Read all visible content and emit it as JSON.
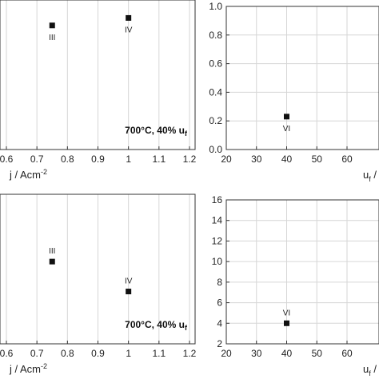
{
  "chart_data": [
    {
      "type": "scatter",
      "panel": "top-left",
      "xlim": [
        0.5,
        1.2
      ],
      "xticks": [
        "0.6",
        "0.7",
        "0.8",
        "0.9",
        "1",
        "1.1",
        "1.2"
      ],
      "xtick_values": [
        0.6,
        0.7,
        0.8,
        0.9,
        1.0,
        1.1,
        1.2
      ],
      "xlabel": "j / Acm",
      "xlabel_sup": "-2",
      "ylim": [
        0,
        1
      ],
      "grid": true,
      "annotation": "700°C, 40% u",
      "annotation_sub": "f",
      "points": [
        {
          "x": 0.75,
          "y": 0.83,
          "label": "III",
          "label_pos": "below"
        },
        {
          "x": 1.0,
          "y": 0.88,
          "label": "IV",
          "label_pos": "below"
        }
      ]
    },
    {
      "type": "scatter",
      "panel": "top-right",
      "xlim": [
        20,
        70
      ],
      "xticks": [
        "20",
        "30",
        "40",
        "50",
        "60"
      ],
      "xtick_values": [
        20,
        30,
        40,
        50,
        60
      ],
      "ylim": [
        0,
        1
      ],
      "yticks": [
        "0.0",
        "0.2",
        "0.4",
        "0.6",
        "0.8",
        "1.0"
      ],
      "ytick_values": [
        0,
        0.2,
        0.4,
        0.6,
        0.8,
        1.0
      ],
      "xlabel": "u",
      "xlabel_sub": "f",
      "xlabel_tail": " /",
      "grid": true,
      "points": [
        {
          "x": 40,
          "y": 0.23,
          "label": "VI",
          "label_pos": "below"
        }
      ]
    },
    {
      "type": "scatter",
      "panel": "bottom-left",
      "xlim": [
        0.5,
        1.2
      ],
      "xticks": [
        "0.6",
        "0.7",
        "0.8",
        "0.9",
        "1",
        "1.1",
        "1.2"
      ],
      "xtick_values": [
        0.6,
        0.7,
        0.8,
        0.9,
        1.0,
        1.1,
        1.2
      ],
      "xlabel": "j / Acm",
      "xlabel_sup": "-2",
      "ylim": [
        0,
        1
      ],
      "grid": true,
      "annotation": "700°C, 40% u",
      "annotation_sub": "f",
      "points": [
        {
          "x": 0.75,
          "y": 0.55,
          "label": "III",
          "label_pos": "above"
        },
        {
          "x": 1.0,
          "y": 0.35,
          "label": "IV",
          "label_pos": "above"
        }
      ]
    },
    {
      "type": "scatter",
      "panel": "bottom-right",
      "xlim": [
        20,
        70
      ],
      "xticks": [
        "20",
        "30",
        "40",
        "50",
        "60"
      ],
      "xtick_values": [
        20,
        30,
        40,
        50,
        60
      ],
      "ylim": [
        2,
        16
      ],
      "yticks": [
        "2",
        "4",
        "6",
        "8",
        "10",
        "12",
        "14",
        "16"
      ],
      "ytick_values": [
        2,
        4,
        6,
        8,
        10,
        12,
        14,
        16
      ],
      "xlabel": "u",
      "xlabel_sub": "f",
      "xlabel_tail": " /",
      "grid": true,
      "points": [
        {
          "x": 40,
          "y": 4,
          "label": "VI",
          "label_pos": "above"
        }
      ]
    }
  ]
}
